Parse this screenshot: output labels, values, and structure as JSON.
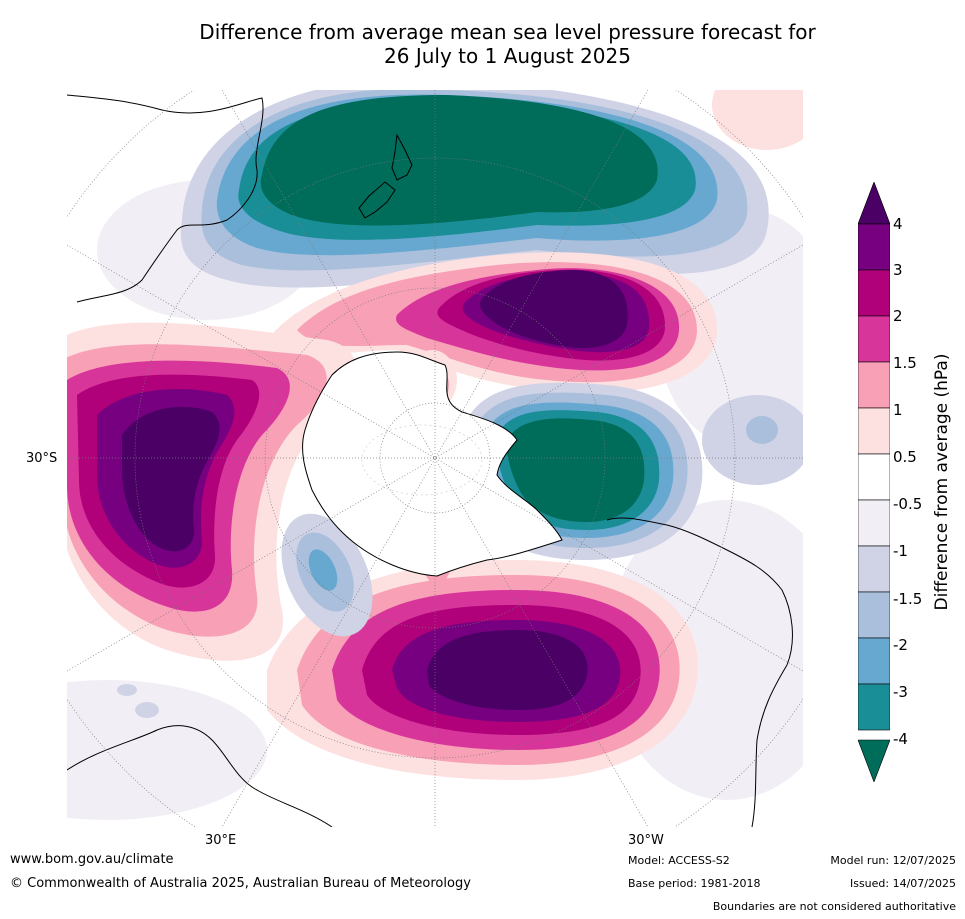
{
  "title": {
    "line1": "Difference from average mean sea level pressure forecast for",
    "line2": "26 July to 1 August 2025"
  },
  "map": {
    "projection": "south-polar-stereographic",
    "lat_label": "30°S",
    "lon_labels": [
      "30°E",
      "30°W"
    ],
    "anomaly_centres": [
      {
        "region": "New Zealand / Tasman Sea",
        "level": "<-4"
      },
      {
        "region": "South Pacific",
        "level": ">4"
      },
      {
        "region": "South Indian Ocean",
        "level": ">4"
      },
      {
        "region": "South Atlantic",
        "level": ">4"
      },
      {
        "region": "Drake Passage / Antarctic Peninsula",
        "level": "<-4"
      }
    ]
  },
  "colorbar": {
    "title": "Difference from average (hPa)",
    "ticks": [
      "4",
      "3",
      "2",
      "1.5",
      "1",
      "0.5",
      "-0.5",
      "-1",
      "-1.5",
      "-2",
      "-3",
      "-4"
    ],
    "colors": [
      "#4a0065",
      "#770080",
      "#b0007a",
      "#d8359a",
      "#f7a0b6",
      "#fde0e0",
      "#ffffff",
      "#f2eef5",
      "#d0d2e6",
      "#a9bfdc",
      "#67a8d0",
      "#1a8e96",
      "#006c5a"
    ]
  },
  "footer": {
    "website": "www.bom.gov.au/climate",
    "copyright": "© Commonwealth of Australia 2025, Australian Bureau of Meteorology",
    "model": "Model: ACCESS-S2",
    "base_period": "Base period: 1981-2018",
    "model_run": "Model run: 12/07/2025",
    "issued": "Issued: 14/07/2025",
    "disclaimer": "Boundaries are not considered authoritative"
  }
}
